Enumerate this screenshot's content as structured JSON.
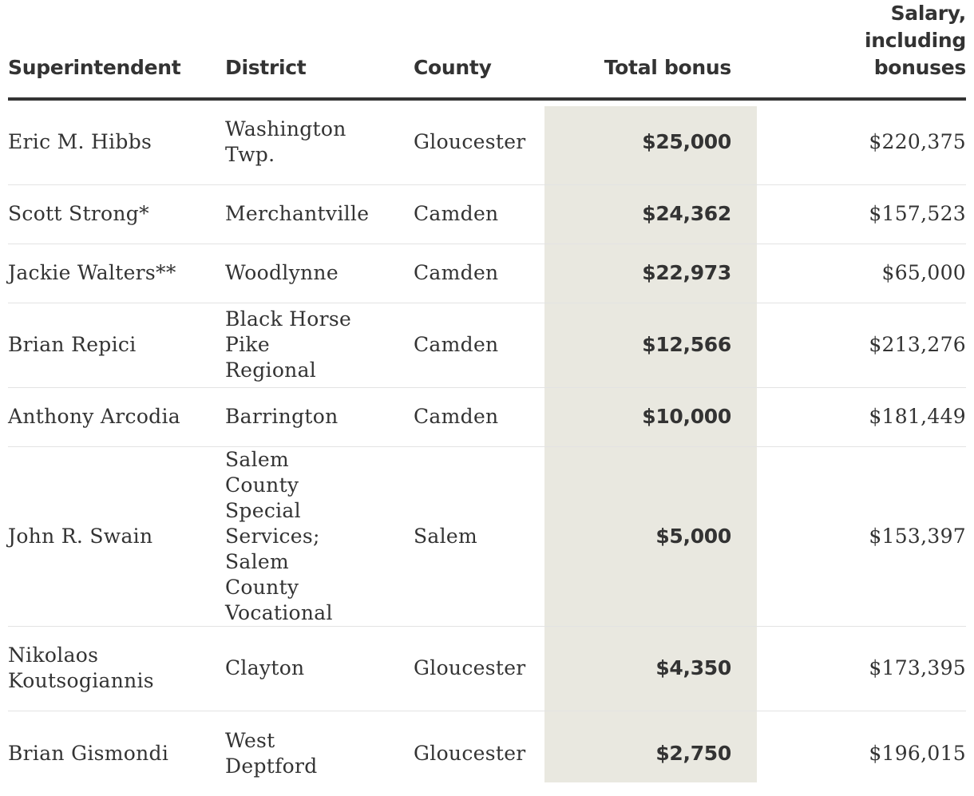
{
  "chart_data": {
    "type": "table",
    "columns": [
      "Superintendent",
      "District",
      "County",
      "Total bonus",
      "Salary, including bonuses"
    ],
    "rows": [
      {
        "superintendent": "Eric M. Hibbs",
        "district": "Washington Twp.",
        "county": "Gloucester",
        "total_bonus": "$25,000",
        "salary": "$220,375"
      },
      {
        "superintendent": "Scott Strong*",
        "district": "Merchantville",
        "county": "Camden",
        "total_bonus": "$24,362",
        "salary": "$157,523"
      },
      {
        "superintendent": "Jackie Walters**",
        "district": "Woodlynne",
        "county": "Camden",
        "total_bonus": "$22,973",
        "salary": "$65,000"
      },
      {
        "superintendent": "Brian Repici",
        "district": "Black Horse Pike Regional",
        "county": "Camden",
        "total_bonus": "$12,566",
        "salary": "$213,276"
      },
      {
        "superintendent": "Anthony Arcodia",
        "district": "Barrington",
        "county": "Camden",
        "total_bonus": "$10,000",
        "salary": "$181,449"
      },
      {
        "superintendent": "John R. Swain",
        "district": "Salem County Special Services; Salem County Vocational",
        "county": "Salem",
        "total_bonus": "$5,000",
        "salary": "$153,397"
      },
      {
        "superintendent": "Nikolaos Koutsogiannis",
        "district": "Clayton",
        "county": "Gloucester",
        "total_bonus": "$4,350",
        "salary": "$173,395"
      },
      {
        "superintendent": "Brian Gismondi",
        "district": "West Deptford",
        "county": "Gloucester",
        "total_bonus": "$2,750",
        "salary": "$196,015"
      }
    ],
    "highlighted_column": "Total bonus",
    "colors": {
      "text": "#333333",
      "highlight": "#e9e8e0",
      "header_rule": "#333333",
      "row_rule": "#e3e3e3"
    }
  }
}
